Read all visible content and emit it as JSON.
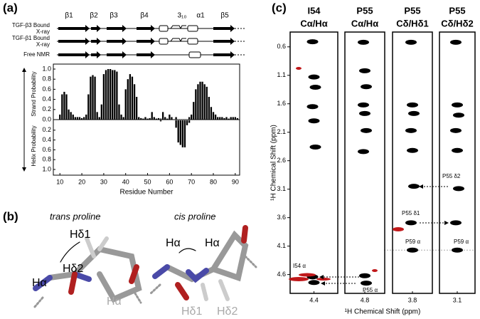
{
  "panel_labels": [
    "(a)",
    "(b)",
    "(c)"
  ],
  "secondary_structure": {
    "elements": [
      "β1",
      "β2",
      "β3",
      "β4",
      "3₁₀",
      "α1",
      "β5"
    ],
    "rows": [
      [
        "TGF-β3 Bound",
        "X-ray"
      ],
      [
        "TGF-β1 Bound",
        "X-ray"
      ],
      [
        "Free NMR"
      ]
    ]
  },
  "structures": {
    "trans": {
      "title": "trans proline",
      "labels": [
        "Hα",
        "Hδ1",
        "Hδ2",
        "Hα"
      ]
    },
    "cis": {
      "title": "cis proline",
      "labels": [
        "Hα",
        "Hα",
        "Hδ1",
        "Hδ2"
      ]
    }
  },
  "chart_data": [
    {
      "type": "bar",
      "xlabel": "Residue Number",
      "ylabel": "Strand Probability",
      "y2label": "Helix Probability",
      "x": [
        8,
        9,
        10,
        11,
        12,
        13,
        14,
        15,
        16,
        17,
        18,
        19,
        20,
        21,
        22,
        23,
        24,
        25,
        26,
        27,
        28,
        29,
        30,
        31,
        32,
        33,
        34,
        35,
        36,
        37,
        38,
        39,
        40,
        41,
        42,
        43,
        44,
        45,
        46,
        47,
        48,
        49,
        50,
        51,
        52,
        53,
        54,
        55,
        56,
        57,
        58,
        59,
        60,
        61,
        62,
        63,
        64,
        65,
        66,
        67,
        68,
        69,
        70,
        71,
        72,
        73,
        74,
        75,
        76,
        77,
        78,
        79,
        80,
        81,
        82,
        83,
        84,
        85,
        86,
        87,
        88,
        89,
        90,
        91
      ],
      "xlim": [
        7,
        92
      ],
      "xticks": [
        10,
        20,
        30,
        40,
        50,
        60,
        70,
        80,
        90
      ],
      "ylim": [
        0,
        1
      ],
      "yticks": [
        {
          "value": 1,
          "label": "1.0"
        },
        0.8,
        0.6,
        0.4,
        0.2,
        {
          "value": 0,
          "label": "0.0"
        }
      ],
      "y2lim": [
        0,
        1
      ],
      "y2ticks": [
        0.2,
        0.4,
        0.6,
        0.8,
        {
          "value": 1,
          "label": "1.0"
        }
      ],
      "series": [
        {
          "color": "#000000",
          "values": [
            0,
            0,
            0.1,
            0.5,
            0.55,
            0.5,
            0.2,
            0.15,
            0.1,
            0.05,
            0.05,
            0.05,
            0.03,
            0.05,
            0.1,
            0.5,
            0.85,
            0.88,
            0.85,
            0.15,
            0.05,
            0.3,
            0.9,
            0.98,
            1.0,
            1.0,
            0.98,
            0.98,
            0.95,
            0.3,
            0.1,
            0.05,
            0.6,
            0.8,
            0.9,
            0.85,
            0.7,
            0.45,
            0.05,
            0.03,
            0.02,
            0.05,
            0.02,
            0.03,
            0.15,
            0.05,
            0.02,
            0.03,
            0.02,
            0.15,
            0.05,
            0.02,
            0.1,
            0.05,
            0,
            0.05,
            0,
            0,
            0,
            0,
            0,
            0.05,
            0.1,
            0.35,
            0.6,
            0.7,
            0.75,
            0.75,
            0.7,
            0.65,
            0.45,
            0.25,
            0.15,
            0.1,
            0.05,
            0.05,
            0.05,
            0.03,
            0.05,
            0.02,
            0.05,
            0.05,
            0.05,
            0.03
          ]
        },
        {
          "color": "#000000",
          "axis": "y2",
          "values": [
            0,
            0,
            0,
            0,
            0,
            0,
            0,
            0,
            0,
            0,
            0,
            0,
            0,
            0,
            0,
            0,
            0,
            0,
            0,
            0,
            0,
            0,
            0,
            0,
            0,
            0,
            0,
            0,
            0,
            0,
            0,
            0,
            0,
            0,
            0,
            0,
            0,
            0,
            0,
            0,
            0,
            0,
            0,
            0,
            0,
            0,
            0,
            0,
            0.02,
            0,
            0,
            0,
            0,
            0,
            0,
            0.15,
            0.45,
            0.5,
            0.55,
            0.55,
            0.1,
            0.05,
            0,
            0,
            0,
            0,
            0,
            0,
            0,
            0,
            0,
            0,
            0,
            0,
            0,
            0,
            0,
            0,
            0,
            0,
            0,
            0,
            0,
            0
          ]
        }
      ]
    },
    {
      "type": "spectra",
      "xlabel": "¹H Chemical Shift (ppm)",
      "ylabel": "¹H Chemical Shift (ppm)",
      "ylim": [
        0.34,
        4.93
      ],
      "yticks": [
        0.6,
        1.1,
        1.6,
        2.1,
        2.6,
        3.1,
        3.6,
        4.1,
        4.6
      ],
      "strips": [
        {
          "title": "I54",
          "subtitle": "Cα/Hα",
          "xtick": 4.4,
          "peaks": [
            0.51,
            1.13,
            1.31,
            1.65,
            1.9,
            2.36,
            4.64,
            4.74
          ]
        },
        {
          "title": "P55",
          "subtitle": "Cα/Hα",
          "xtick": 4.8,
          "peaks": [
            0.52,
            1.02,
            1.3,
            1.62,
            1.77,
            2.07,
            2.44,
            4.62,
            4.75
          ]
        },
        {
          "title": "P55",
          "subtitle": "Cδ/Hδ1",
          "xtick": 3.8,
          "peaks": [
            0.52,
            1.62,
            1.77,
            2.07,
            2.42,
            3.05,
            3.69,
            4.17
          ]
        },
        {
          "title": "P55",
          "subtitle": "Cδ/Hδ2",
          "xtick": 3.1,
          "peaks": [
            0.52,
            1.62,
            1.8,
            2.07,
            2.42,
            3.09,
            3.69,
            4.17
          ]
        }
      ],
      "annotations": [
        "I54 α",
        "P55 α",
        "P55 δ2",
        "P55 δ1",
        "P59 α",
        "P59 α"
      ]
    }
  ]
}
